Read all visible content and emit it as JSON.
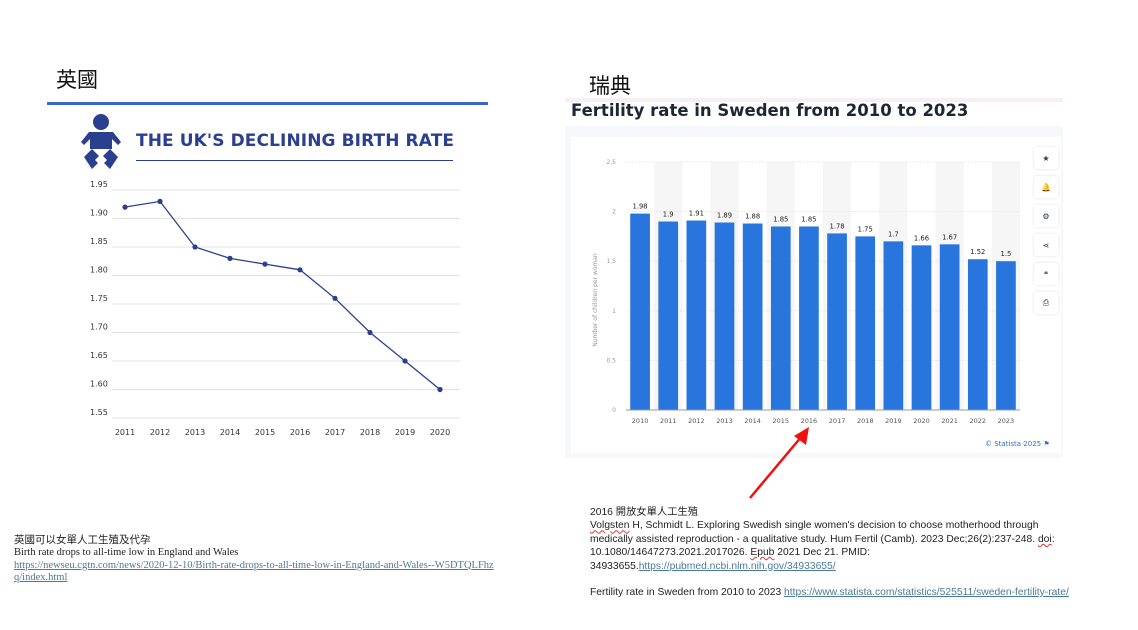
{
  "uk": {
    "section_title": "英國",
    "infographic_title": "THE UK'S DECLINING BIRTH RATE",
    "icon": "baby-icon",
    "accent_color": "#2b3f8f",
    "notes": {
      "line1": "英國可以女單人工生殖及代孕",
      "line2": "Birth rate drops to all-time low in England and Wales",
      "link": "https://newseu.cgtn.com/news/2020-12-10/Birth-rate-drops-to-all-time-low-in-England-and-Wales--W5DTQLFhzq/index.html"
    }
  },
  "sweden": {
    "section_title": "瑞典",
    "chart_title": "Fertility rate in Sweden from 2010 to 2023",
    "credit": "© Statista 2025",
    "bar_color": "#2876dd",
    "side_buttons": [
      {
        "name": "star-icon",
        "glyph": "★"
      },
      {
        "name": "bell-icon",
        "glyph": "🔔"
      },
      {
        "name": "gear-icon",
        "glyph": "⚙"
      },
      {
        "name": "share-icon",
        "glyph": "⋖"
      },
      {
        "name": "quote-icon",
        "glyph": "❝"
      },
      {
        "name": "print-icon",
        "glyph": "⎙"
      }
    ],
    "annotation": "2016 開放女單人工生殖",
    "notes": {
      "citation_author": "Volgsten",
      "citation_part1": " H, Schmidt L. Exploring Swedish single women's decision to choose motherhood through medically assisted reproduction - a qualitative study. Hum Fertil (Camb). 2023 Dec;26(2):237-248. ",
      "doi_word": "doi",
      "citation_part2": ": 10.1080/14647273.2021.2017026. ",
      "epub_word": "Epub",
      "citation_part3": " 2021 Dec 21. PMID: 34933655.",
      "pubmed_link": "https://pubmed.ncbi.nlm.nih.gov/34933655/",
      "statista_label": "Fertility rate in Sweden from 2010 to 2023 ",
      "statista_link": "https://www.statista.com/statistics/525511/sweden-fertility-rate/"
    }
  },
  "chart_data": [
    {
      "type": "line",
      "title": "THE UK'S DECLINING BIRTH RATE",
      "xlabel": "",
      "ylabel": "",
      "x": [
        "2011",
        "2012",
        "2013",
        "2014",
        "2015",
        "2016",
        "2017",
        "2018",
        "2019",
        "2020"
      ],
      "values": [
        1.92,
        1.93,
        1.85,
        1.83,
        1.82,
        1.81,
        1.76,
        1.7,
        1.65,
        1.6
      ],
      "ylim": [
        1.55,
        1.95
      ],
      "yticks": [
        "1.95",
        "1.90",
        "1.85",
        "1.80",
        "1.75",
        "1.70",
        "1.65",
        "1.60",
        "1.55"
      ],
      "grid": true,
      "color": "#2b3f8f"
    },
    {
      "type": "bar",
      "title": "Fertility rate in Sweden from 2010 to 2023",
      "xlabel": "",
      "ylabel": "Number of children per woman",
      "categories": [
        "2010",
        "2011",
        "2012",
        "2013",
        "2014",
        "2015",
        "2016",
        "2017",
        "2018",
        "2019",
        "2020",
        "2021",
        "2022",
        "2023"
      ],
      "values": [
        1.98,
        1.9,
        1.91,
        1.89,
        1.88,
        1.85,
        1.85,
        1.78,
        1.75,
        1.7,
        1.66,
        1.67,
        1.52,
        1.5
      ],
      "labels": [
        "1.98",
        "1.9",
        "1.91",
        "1.89",
        "1.88",
        "1.85",
        "1.85",
        "1.78",
        "1.75",
        "1.7",
        "1.66",
        "1.67",
        "1.52",
        "1.5"
      ],
      "ylim": [
        0,
        2.5
      ],
      "yticks": [
        "0",
        "0.5",
        "1",
        "1.5",
        "2",
        "2.5"
      ],
      "grid": true,
      "color": "#2876dd"
    }
  ]
}
